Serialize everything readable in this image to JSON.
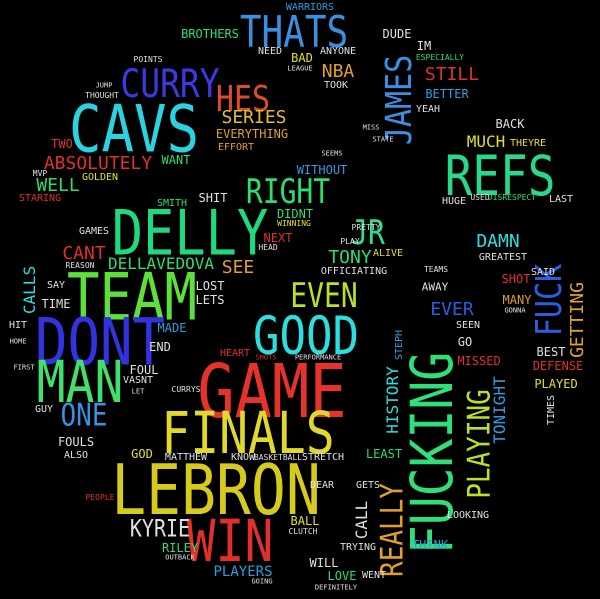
{
  "words": {
    "game": "GAME",
    "lebron": "LEBRON",
    "cavs": "CAVS",
    "team": "TEAM",
    "delly": "DELLY",
    "dont": "DONT",
    "finals": "FINALS",
    "man": "MAN",
    "good": "GOOD",
    "win": "WIN",
    "refs": "REFS",
    "fucking": "FUCKING",
    "thats": "THATS",
    "curry": "CURRY",
    "hes": "HES",
    "james": "JAMES",
    "right": "RIGHT",
    "fuck": "FUCK",
    "even": "EVEN",
    "jr": "JR",
    "playing": "PLAYING",
    "one": "ONE",
    "really": "REALLY",
    "kyrie": "KYRIE",
    "absolutely": "ABSOLUTELY",
    "series": "SERIES",
    "nba": "NBA",
    "still": "STILL",
    "much": "MUCH",
    "well": "WELL",
    "dellavedova": "DELLAVEDOVA",
    "cant": "CANT",
    "see": "SEE",
    "tony": "TONY",
    "damn": "DAMN",
    "ever": "EVER",
    "getting": "GETTING",
    "history": "HISTORY",
    "tonight": "TONIGHT",
    "calls": "CALLS",
    "call": "CALL",
    "players": "PLAYERS",
    "made": "MADE",
    "end": "END",
    "foul": "FOUL",
    "lost": "LOST",
    "lets": "LETS",
    "next": "NEXT",
    "didnt": "DIDNT",
    "shit": "SHIT",
    "smith": "SMITH",
    "want": "WANT",
    "golden": "GOLDEN",
    "two": "TWO",
    "staring": "STARING",
    "games": "GAMES",
    "brothers": "BROTHERS",
    "need": "NEED",
    "bad": "BAD",
    "anyone": "ANYONE",
    "dude": "DUDE",
    "im": "IM",
    "especially": "ESPECIALLY",
    "better": "BETTER",
    "yeah": "YEAH",
    "back": "BACK",
    "theyre": "THEYRE",
    "huge": "HUGE",
    "last": "LAST",
    "everything": "EVERYTHING",
    "effort": "EFFORT",
    "took": "TOOK",
    "without": "WITHOUT",
    "officiating": "OFFICIATING",
    "alive": "ALIVE",
    "said": "SAID",
    "greatest": "GREATEST",
    "shot": "SHOT",
    "away": "AWAY",
    "many": "MANY",
    "seen": "SEEN",
    "go": "GO",
    "missed": "MISSED",
    "best": "BEST",
    "defense": "DEFENSE",
    "played": "PLAYED",
    "times": "TIMES",
    "steph": "STEPH",
    "heart": "HEART",
    "vasnt": "VASNT",
    "fouls": "FOULS",
    "also": "ALSO",
    "god": "GOD",
    "matthew": "MATTHEW",
    "know": "KNOW",
    "basketball": "BASKETBALL",
    "stretch": "STRETCH",
    "least": "LEAST",
    "dear": "DEAR",
    "gets": "GETS",
    "ball": "BALL",
    "clutch": "CLUTCH",
    "riley": "RILEY",
    "trying": "TRYING",
    "will": "WILL",
    "love": "LOVE",
    "went": "WENT",
    "think": "THINK",
    "looking": "LOOKING",
    "time": "TIME",
    "say": "SAY",
    "hit": "HIT",
    "guy": "GUY",
    "reason": "REASON",
    "warriors": "WARRIORS",
    "mvp": "MVP",
    "points": "POINTS",
    "thought": "THOUGHT",
    "league": "LEAGUE",
    "disrespect": "DISRESPECT",
    "used": "USED",
    "winning": "WINNING",
    "head": "HEAD",
    "play": "PLAY",
    "pretty": "PRETTY",
    "teams": "TEAMS",
    "gonna": "GONNA",
    "curry2": "CURRYS",
    "people": "PEOPLE",
    "outback": "OUTBACK",
    "going": "GOING",
    "definitely": "DEFINITELY",
    "seems": "SEEMS",
    "miss": "MISS",
    "state": "STATE",
    "jump": "JUMP",
    "first": "FIRST",
    "home": "HOME",
    "shots": "SHOTS",
    "performance": "PERFORMANCE",
    "let": "LET"
  },
  "colors": {
    "background": "#000000",
    "red": "#e0302a",
    "yellow": "#e0e02a",
    "green": "#2adf6e",
    "cyan": "#2adfe0",
    "blue": "#3a3ae0",
    "white": "#e0e0e0"
  }
}
